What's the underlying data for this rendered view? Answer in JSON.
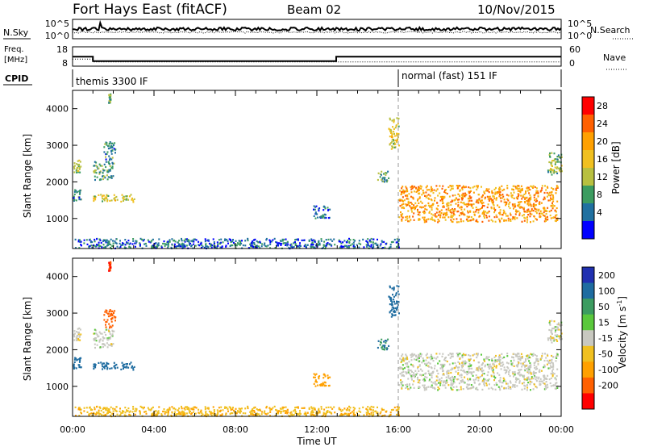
{
  "header": {
    "title": "Fort Hays East (fitACF)",
    "beam": "Beam 02",
    "date": "10/Nov/2015"
  },
  "strips": {
    "nsky": {
      "label": "N.Sky",
      "right_label": "N.Search",
      "left_ticks": [
        "10^5",
        "10^0"
      ],
      "right_ticks": [
        "10^5",
        "10^0"
      ]
    },
    "freq": {
      "label_line1": "Freq.",
      "label_line2": "[MHz]",
      "right_label": "Nave",
      "left_ticks": [
        "18",
        "8"
      ],
      "right_ticks": [
        "60",
        "0"
      ],
      "freq_mhz": [
        {
          "from_hr": 0,
          "to_hr": 1.0,
          "value": 12.9
        },
        {
          "from_hr": 1.0,
          "to_hr": 12.95,
          "value": 10.6
        },
        {
          "from_hr": 12.95,
          "to_hr": 24,
          "value": 12.9
        }
      ],
      "nave_approx": [
        {
          "from_hr": 0,
          "to_hr": 1.0,
          "value": 22
        },
        {
          "from_hr": 1.0,
          "to_hr": 12.95,
          "value": 13
        },
        {
          "from_hr": 12.95,
          "to_hr": 24,
          "value": 13
        }
      ]
    },
    "cpid": {
      "label": "CPID",
      "modes": [
        {
          "text": "themis 3300 IF",
          "start_hr": 0
        },
        {
          "text": "normal (fast) 151 IF",
          "start_hr": 16
        }
      ]
    }
  },
  "colorbars": {
    "power": {
      "label": "Power [dB]",
      "ticks": [
        "28",
        "24",
        "20",
        "16",
        "12",
        "8",
        "4"
      ],
      "colors": [
        "#ff0000",
        "#ff6000",
        "#ffa000",
        "#f0c020",
        "#b8c040",
        "#3c9c60",
        "#2070a0",
        "#0000ff"
      ]
    },
    "velocity": {
      "label_main": "Velocity [m s",
      "label_sup": "-1",
      "label_end": "]",
      "ticks": [
        "200",
        "100",
        "50",
        "15",
        "-15",
        "-50",
        "-100",
        "-200"
      ],
      "colors": [
        "#2030b0",
        "#1e6ca0",
        "#3c9c60",
        "#5ac83c",
        "#c8c8c0",
        "#f0c020",
        "#ffa000",
        "#ff6000",
        "#ff0000"
      ]
    }
  },
  "axes": {
    "ylabel": "Slant Range [km]",
    "yticks": [
      "4000",
      "3000",
      "2000",
      "1000"
    ],
    "xlabel": "Time UT",
    "xticks": [
      "00:00",
      "04:00",
      "08:00",
      "12:00",
      "16:00",
      "20:00",
      "00:00"
    ]
  },
  "chart_data": {
    "type": "heatmap",
    "title": "Fort Hays East (fitACF)",
    "xlabel": "Time UT",
    "ylabel": "Slant Range [km]",
    "xlim_hours": [
      0,
      24
    ],
    "ylim_km": [
      180,
      4500
    ],
    "mode_change_hr": 16,
    "clusters": [
      {
        "t": [
          0.0,
          0.4
        ],
        "r": [
          2250,
          2600
        ],
        "power": 14,
        "velocity": 0
      },
      {
        "t": [
          0.0,
          0.4
        ],
        "r": [
          1450,
          1800
        ],
        "power": 8,
        "velocity": 120
      },
      {
        "t": [
          1.0,
          2.0
        ],
        "r": [
          2050,
          2550
        ],
        "power": 10,
        "velocity": 0
      },
      {
        "t": [
          1.0,
          3.0
        ],
        "r": [
          1450,
          1650
        ],
        "power": 16,
        "velocity": 120
      },
      {
        "t": [
          1.5,
          2.1
        ],
        "r": [
          2600,
          3100
        ],
        "power": 8,
        "velocity": -150
      },
      {
        "t": [
          1.75,
          1.85
        ],
        "r": [
          4150,
          4400
        ],
        "power": 10,
        "velocity": -200
      },
      {
        "t": [
          0.1,
          16.0
        ],
        "r": [
          180,
          450
        ],
        "power": 6,
        "velocity": -40
      },
      {
        "t": [
          11.8,
          12.6
        ],
        "r": [
          1000,
          1350
        ],
        "power": 6,
        "velocity": -80
      },
      {
        "t": [
          14.9,
          15.5
        ],
        "r": [
          2000,
          2300
        ],
        "power": 10,
        "velocity": 100
      },
      {
        "t": [
          15.5,
          16.0
        ],
        "r": [
          2900,
          3750
        ],
        "power": 16,
        "velocity": 150
      },
      {
        "t": [
          16.0,
          23.8
        ],
        "r": [
          900,
          1900
        ],
        "power": 22,
        "velocity": 0
      },
      {
        "t": [
          23.3,
          24.0
        ],
        "r": [
          2200,
          2800
        ],
        "power": 12,
        "velocity": 0
      }
    ]
  }
}
